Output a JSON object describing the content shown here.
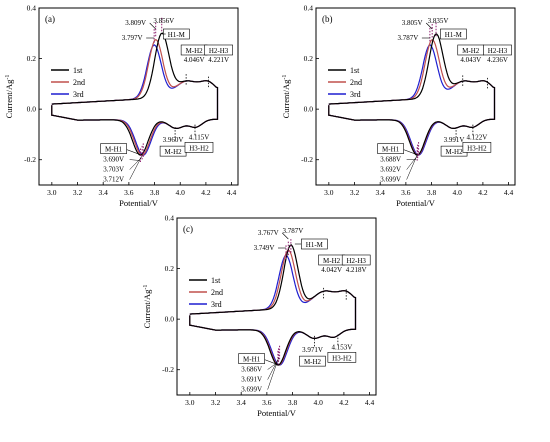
{
  "figure": {
    "xlabel": "Potential/V",
    "ylabel": "Current/Ag",
    "ylabel_sup": "-1",
    "series_names": [
      "1st",
      "2nd",
      "3rd"
    ],
    "series_colors": [
      "#000000",
      "#c0504d",
      "#1f1fd0"
    ],
    "marker_color": "#8b1a6b"
  },
  "chart_data": [
    {
      "type": "line",
      "panel_label": "(a)",
      "xlim": [
        2.9,
        4.45
      ],
      "ylim": [
        -0.3,
        0.4
      ],
      "xticks": [
        3.0,
        3.2,
        3.4,
        3.6,
        3.8,
        4.0,
        4.2,
        4.4
      ],
      "yticks": [
        -0.2,
        0.0,
        0.2,
        0.4
      ],
      "grid": false,
      "legend": "middle-left",
      "cathodic_peaks": [
        {
          "value": "3.856V",
          "x": 3.856,
          "y": 0.33,
          "series": "1st"
        },
        {
          "value": "3.809V",
          "x": 3.809,
          "y": 0.31,
          "series": "2nd"
        },
        {
          "value": "3.797V",
          "x": 3.797,
          "y": 0.285,
          "series": "3rd"
        }
      ],
      "extra_peaks": [
        {
          "value": "4.046V",
          "x": 4.046,
          "y": 0.115
        },
        {
          "value": "4.221V",
          "x": 4.221,
          "y": 0.105
        }
      ],
      "anodic_peaks": [
        {
          "value": "3.690V",
          "x": 3.69,
          "y": -0.195
        },
        {
          "value": "3.703V",
          "x": 3.703,
          "y": -0.185
        },
        {
          "value": "3.712V",
          "x": 3.712,
          "y": -0.175
        }
      ],
      "reduction_extra": [
        {
          "value": "3.960V",
          "x": 3.96,
          "y": -0.095
        },
        {
          "value": "4.115V",
          "x": 4.115,
          "y": -0.085
        }
      ],
      "boxes": {
        "top": "H1-M",
        "mid": "M-H2",
        "right": "H2-H3",
        "bottom_left": "M-H1",
        "bottom_mid": "M-H2",
        "bottom_right": "H3-H2"
      },
      "series": [
        {
          "name": "1st",
          "peak_x": 3.856,
          "peak_y": 0.33
        },
        {
          "name": "2nd",
          "peak_x": 3.809,
          "peak_y": 0.31
        },
        {
          "name": "3rd",
          "peak_x": 3.797,
          "peak_y": 0.285
        }
      ]
    },
    {
      "type": "line",
      "panel_label": "(b)",
      "xlim": [
        2.9,
        4.45
      ],
      "ylim": [
        -0.3,
        0.4
      ],
      "xticks": [
        3.0,
        3.2,
        3.4,
        3.6,
        3.8,
        4.0,
        4.2,
        4.4
      ],
      "yticks": [
        -0.2,
        0.0,
        0.2,
        0.4
      ],
      "grid": false,
      "legend": "middle-left",
      "cathodic_peaks": [
        {
          "value": "3.835V",
          "x": 3.835,
          "y": 0.31,
          "series": "1st"
        },
        {
          "value": "3.805V",
          "x": 3.805,
          "y": 0.305,
          "series": "2nd"
        },
        {
          "value": "3.787V",
          "x": 3.787,
          "y": 0.29,
          "series": "3rd"
        }
      ],
      "extra_peaks": [
        {
          "value": "4.043V",
          "x": 4.043,
          "y": 0.11
        },
        {
          "value": "4.236V",
          "x": 4.236,
          "y": 0.1
        }
      ],
      "anodic_peaks": [
        {
          "value": "3.688V",
          "x": 3.688,
          "y": -0.19
        },
        {
          "value": "3.692V",
          "x": 3.692,
          "y": -0.18
        },
        {
          "value": "3.699V",
          "x": 3.699,
          "y": -0.17
        }
      ],
      "reduction_extra": [
        {
          "value": "3.991V",
          "x": 3.991,
          "y": -0.095
        },
        {
          "value": "4.122V",
          "x": 4.122,
          "y": -0.085
        }
      ],
      "boxes": {
        "top": "H1-M",
        "mid": "M-H2",
        "right": "H2-H3",
        "bottom_left": "M-H1",
        "bottom_mid": "M-H2",
        "bottom_right": "H3-H2"
      },
      "series": [
        {
          "name": "1st",
          "peak_x": 3.835,
          "peak_y": 0.31
        },
        {
          "name": "2nd",
          "peak_x": 3.805,
          "peak_y": 0.305
        },
        {
          "name": "3rd",
          "peak_x": 3.787,
          "peak_y": 0.29
        }
      ]
    },
    {
      "type": "line",
      "panel_label": "(c)",
      "xlim": [
        2.9,
        4.45
      ],
      "ylim": [
        -0.3,
        0.4
      ],
      "xticks": [
        3.0,
        3.2,
        3.4,
        3.6,
        3.8,
        4.0,
        4.2,
        4.4
      ],
      "yticks": [
        -0.2,
        0.0,
        0.2,
        0.4
      ],
      "grid": false,
      "legend": "middle-left",
      "cathodic_peaks": [
        {
          "value": "3.787V",
          "x": 3.787,
          "y": 0.285,
          "series": "1st"
        },
        {
          "value": "3.767V",
          "x": 3.767,
          "y": 0.275,
          "series": "2nd"
        },
        {
          "value": "3.749V",
          "x": 3.749,
          "y": 0.26,
          "series": "3rd"
        }
      ],
      "extra_peaks": [
        {
          "value": "4.042V",
          "x": 4.042,
          "y": 0.1
        },
        {
          "value": "4.218V",
          "x": 4.218,
          "y": 0.095
        }
      ],
      "anodic_peaks": [
        {
          "value": "3.686V",
          "x": 3.686,
          "y": -0.165
        },
        {
          "value": "3.691V",
          "x": 3.691,
          "y": -0.155
        },
        {
          "value": "3.699V",
          "x": 3.699,
          "y": -0.145
        }
      ],
      "reduction_extra": [
        {
          "value": "3.971V",
          "x": 3.971,
          "y": -0.09
        },
        {
          "value": "4.153V",
          "x": 4.153,
          "y": -0.085
        }
      ],
      "boxes": {
        "top": "H1-M",
        "mid": "M-H2",
        "right": "H2-H3",
        "bottom_left": "M-H1",
        "bottom_mid": "M-H2",
        "bottom_right": "H3-H2"
      },
      "series": [
        {
          "name": "1st",
          "peak_x": 3.787,
          "peak_y": 0.285
        },
        {
          "name": "2nd",
          "peak_x": 3.767,
          "peak_y": 0.275
        },
        {
          "name": "3rd",
          "peak_x": 3.749,
          "peak_y": 0.26
        }
      ]
    }
  ]
}
